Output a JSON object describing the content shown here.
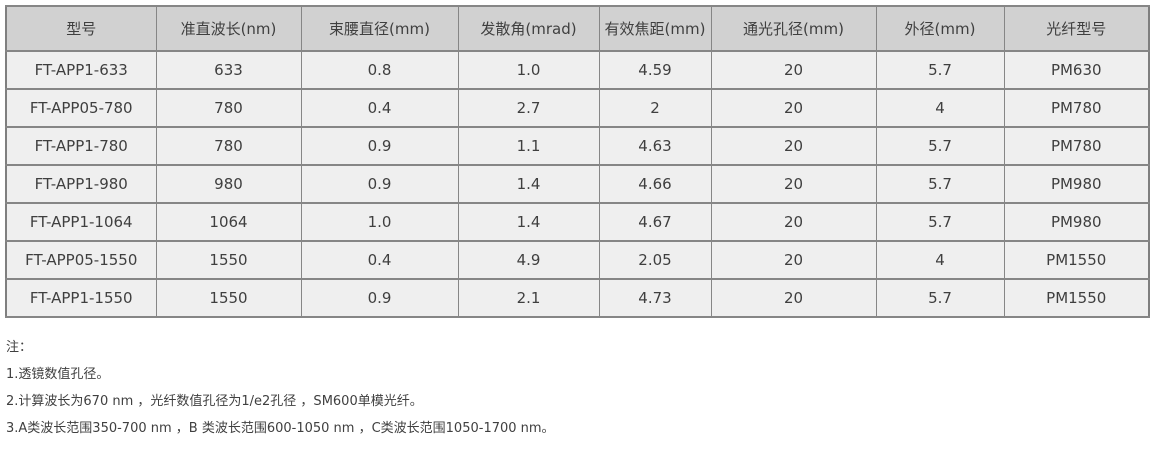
{
  "table": {
    "columns": [
      "型号",
      "准直波长(nm)",
      "束腰直径(mm)",
      "发散角(mrad)",
      "有效焦距(mm)",
      "通光孔径(mm)",
      "外径(mm)",
      "光纤型号"
    ],
    "rows": [
      [
        "FT-APP1-633",
        "633",
        "0.8",
        "1.0",
        "4.59",
        "20",
        "5.7",
        "PM630"
      ],
      [
        "FT-APP05-780",
        "780",
        "0.4",
        "2.7",
        "2",
        "20",
        "4",
        "PM780"
      ],
      [
        "FT-APP1-780",
        "780",
        "0.9",
        "1.1",
        "4.63",
        "20",
        "5.7",
        "PM780"
      ],
      [
        "FT-APP1-980",
        "980",
        "0.9",
        "1.4",
        "4.66",
        "20",
        "5.7",
        "PM980"
      ],
      [
        "FT-APP1-1064",
        "1064",
        "1.0",
        "1.4",
        "4.67",
        "20",
        "5.7",
        "PM980"
      ],
      [
        "FT-APP05-1550",
        "1550",
        "0.4",
        "4.9",
        "2.05",
        "20",
        "4",
        "PM1550"
      ],
      [
        "FT-APP1-1550",
        "1550",
        "0.9",
        "2.1",
        "4.73",
        "20",
        "5.7",
        "PM1550"
      ]
    ]
  },
  "notes": {
    "label": "注：",
    "items": [
      "1.透镜数值孔径。",
      "2.计算波长为670 nm ，光纤数值孔径为1/e2孔径 ，SM600单模光纤。",
      "3.A类波长范围350-700 nm ，B 类波长范围600-1050 nm ，C类波长范围1050-1700 nm。"
    ]
  },
  "colors": {
    "header_bg": "#d1d1d1",
    "row_bg": "#efefef",
    "border": "#868686",
    "text": "#3f3f3f"
  }
}
